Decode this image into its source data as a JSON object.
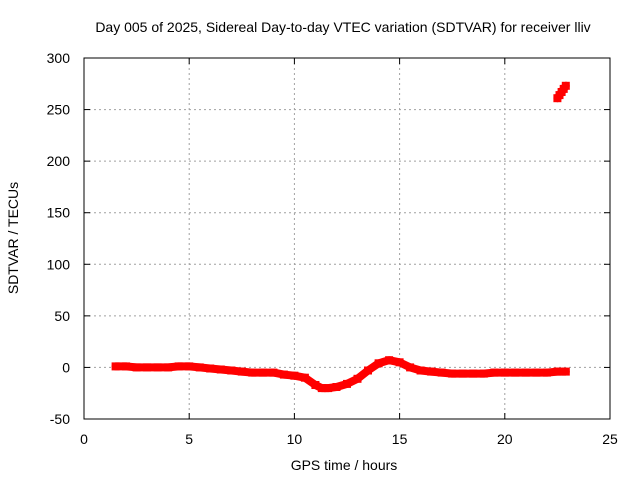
{
  "chart_data": {
    "type": "scatter",
    "title": "Day 005 of 2025, Sidereal Day-to-day VTEC variation (SDTVAR) for receiver lliv",
    "xlabel": "GPS time / hours",
    "ylabel": "SDTVAR / TECUs",
    "xlim": [
      0,
      25
    ],
    "ylim": [
      -50,
      300
    ],
    "xticks": [
      0,
      5,
      10,
      15,
      20,
      25
    ],
    "yticks": [
      -50,
      0,
      50,
      100,
      150,
      200,
      250,
      300
    ],
    "xtick_labels": [
      "0",
      "5",
      "10",
      "15",
      "20",
      "25"
    ],
    "ytick_labels": [
      "-50",
      "0",
      "50",
      "100",
      "150",
      "200",
      "250",
      "300"
    ],
    "grid": true,
    "series": [
      {
        "color": "#ff0000",
        "x": [
          1.5,
          2.0,
          2.5,
          3.0,
          3.5,
          4.0,
          4.5,
          5.0,
          5.5,
          6.0,
          6.5,
          7.0,
          7.5,
          8.0,
          8.5,
          9.0,
          9.5,
          10.0,
          10.5,
          11.0,
          11.3,
          11.6,
          12.0,
          12.5,
          13.0,
          13.5,
          14.0,
          14.5,
          15.0,
          15.5,
          16.0,
          16.5,
          17.0,
          17.5,
          18.0,
          18.5,
          19.0,
          19.5,
          20.0,
          20.5,
          21.0,
          21.5,
          22.0,
          22.5,
          22.9
        ],
        "y": [
          1,
          1,
          0,
          0,
          0,
          0,
          1,
          1,
          0,
          -1,
          -2,
          -3,
          -4,
          -5,
          -5,
          -5,
          -7,
          -8,
          -10,
          -17,
          -20,
          -20,
          -19,
          -16,
          -11,
          -3,
          4,
          7,
          5,
          0,
          -3,
          -4,
          -5,
          -6,
          -6,
          -6,
          -6,
          -5,
          -5,
          -5,
          -5,
          -5,
          -5,
          -4,
          -4
        ]
      },
      {
        "color": "#ff0000",
        "x": [
          22.5,
          22.6,
          22.7,
          22.8,
          22.9
        ],
        "y": [
          261,
          264,
          267,
          270,
          273
        ]
      }
    ]
  }
}
